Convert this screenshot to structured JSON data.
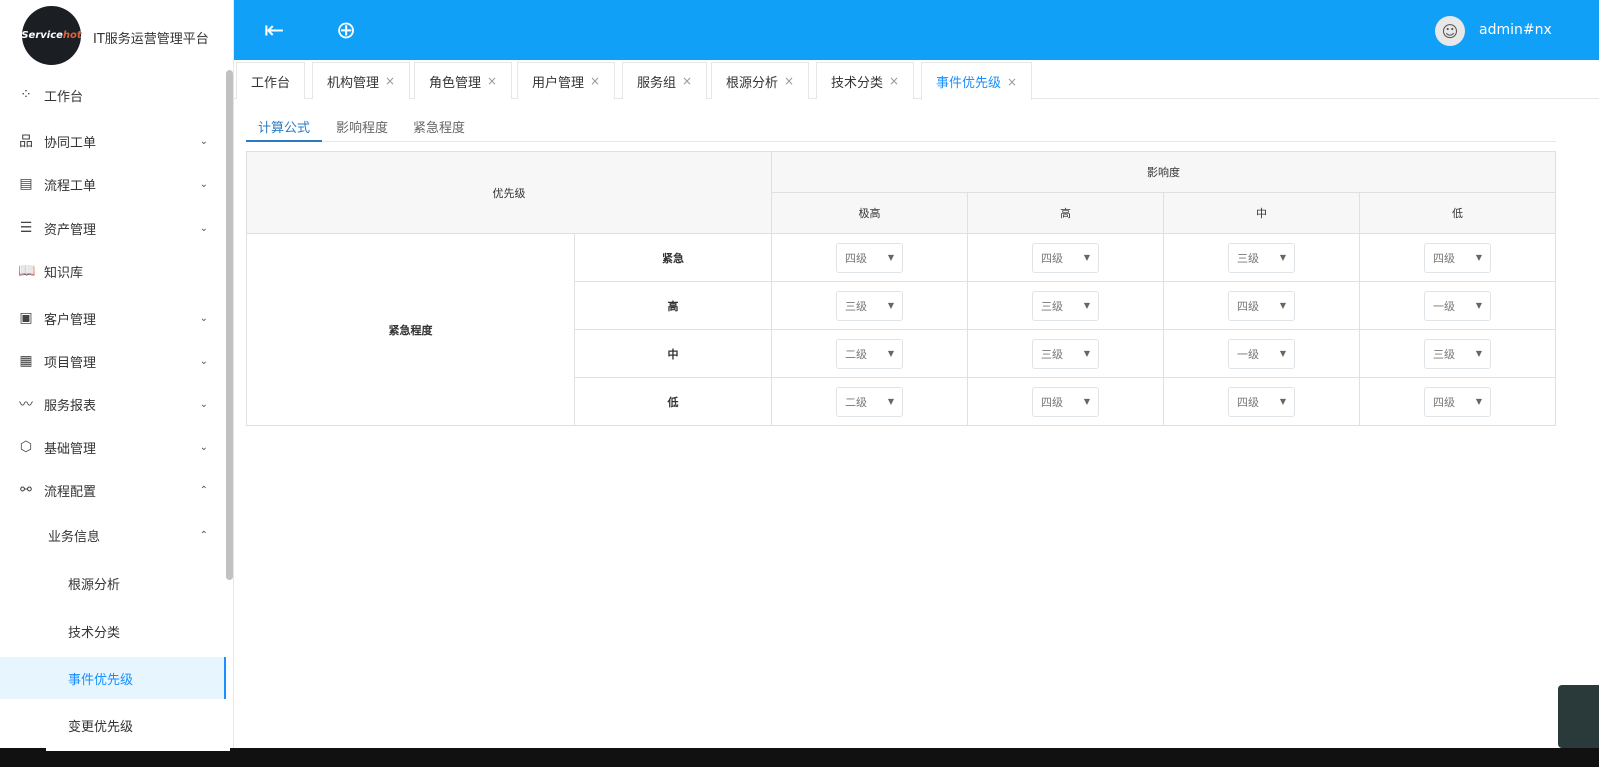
{
  "app": {
    "logo_text_a": "Service",
    "logo_text_b": "hot",
    "title": "IT服务运营管理平台"
  },
  "header": {
    "menu_icon": "indent-menu-icon",
    "add_icon": "plus-circle-icon",
    "username": "admin#nx",
    "accent": "#10a0f8"
  },
  "sidebar": {
    "items": [
      {
        "label": "工作台",
        "icon": "apps-icon",
        "chevron": ""
      },
      {
        "label": "协同工单",
        "icon": "sitemap-icon",
        "chevron": "⌄"
      },
      {
        "label": "流程工单",
        "icon": "calendar-icon",
        "chevron": "⌄"
      },
      {
        "label": "资产管理",
        "icon": "storage-icon",
        "chevron": "⌄"
      },
      {
        "label": "知识库",
        "icon": "book-icon",
        "chevron": ""
      },
      {
        "label": "客户管理",
        "icon": "contact-icon",
        "chevron": "⌄"
      },
      {
        "label": "项目管理",
        "icon": "document-icon",
        "chevron": "⌄"
      },
      {
        "label": "服务报表",
        "icon": "chart-icon",
        "chevron": "⌄"
      },
      {
        "label": "基础管理",
        "icon": "cube-icon",
        "chevron": "⌄"
      },
      {
        "label": "流程配置",
        "icon": "share-icon",
        "chevron": "⌃"
      }
    ],
    "sub": {
      "label": "业务信息",
      "chevron": "⌃"
    },
    "leaves": [
      {
        "label": "根源分析"
      },
      {
        "label": "技术分类"
      },
      {
        "label": "事件优先级",
        "active": true
      },
      {
        "label": "变更优先级"
      }
    ]
  },
  "tabs": [
    {
      "label": "工作台",
      "close": ""
    },
    {
      "label": "机构管理",
      "close": "×"
    },
    {
      "label": "角色管理",
      "close": "×"
    },
    {
      "label": "用户管理",
      "close": "×"
    },
    {
      "label": "服务组",
      "close": "×"
    },
    {
      "label": "根源分析",
      "close": "×"
    },
    {
      "label": "技术分类",
      "close": "×"
    },
    {
      "label": "事件优先级",
      "close": "×",
      "active": true
    }
  ],
  "subtabs": [
    {
      "label": "计算公式",
      "active": true
    },
    {
      "label": "影响程度"
    },
    {
      "label": "紧急程度"
    }
  ],
  "matrix": {
    "corner": "优先级",
    "impact_header": "影响度",
    "urgency_header": "紧急程度",
    "impact_levels": [
      "极高",
      "高",
      "中",
      "低"
    ],
    "rows": [
      {
        "urgency": "紧急",
        "values": [
          "四级",
          "四级",
          "三级",
          "四级"
        ]
      },
      {
        "urgency": "高",
        "values": [
          "三级",
          "三级",
          "四级",
          "一级"
        ]
      },
      {
        "urgency": "中",
        "values": [
          "二级",
          "三级",
          "一级",
          "三级"
        ]
      },
      {
        "urgency": "低",
        "values": [
          "二级",
          "四级",
          "四级",
          "四级"
        ]
      }
    ]
  }
}
